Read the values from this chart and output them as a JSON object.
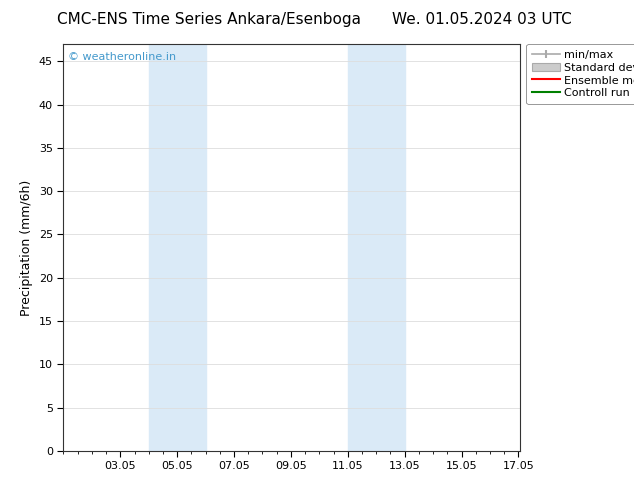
{
  "title_left": "CMC-ENS Time Series Ankara/Esenboga",
  "title_right": "We. 01.05.2024 03 UTC",
  "ylabel": "Precipitation (mm/6h)",
  "ylim": [
    0,
    47
  ],
  "yticks": [
    0,
    5,
    10,
    15,
    20,
    25,
    30,
    35,
    40,
    45
  ],
  "xlim": [
    1.0,
    17.05
  ],
  "xtick_positions": [
    3,
    5,
    7,
    9,
    11,
    13,
    15,
    17
  ],
  "xtick_labels": [
    "03.05",
    "05.05",
    "07.05",
    "09.05",
    "11.05",
    "13.05",
    "15.05",
    "17.05"
  ],
  "shaded_bands": [
    {
      "x_start": 4.0,
      "x_end": 6.0,
      "color": "#daeaf7"
    },
    {
      "x_start": 11.0,
      "x_end": 13.0,
      "color": "#daeaf7"
    }
  ],
  "background_color": "#ffffff",
  "plot_bg_color": "#ffffff",
  "watermark_text": "© weatheronline.in",
  "watermark_color": "#4499cc",
  "legend_items": [
    {
      "label": "min/max",
      "color": "#aaaaaa"
    },
    {
      "label": "Standard deviation",
      "color": "#cccccc"
    },
    {
      "label": "Ensemble mean run",
      "color": "#ff0000"
    },
    {
      "label": "Controll run",
      "color": "#008000"
    }
  ],
  "title_fontsize": 11,
  "tick_fontsize": 8,
  "ylabel_fontsize": 9,
  "legend_fontsize": 8,
  "watermark_fontsize": 8
}
